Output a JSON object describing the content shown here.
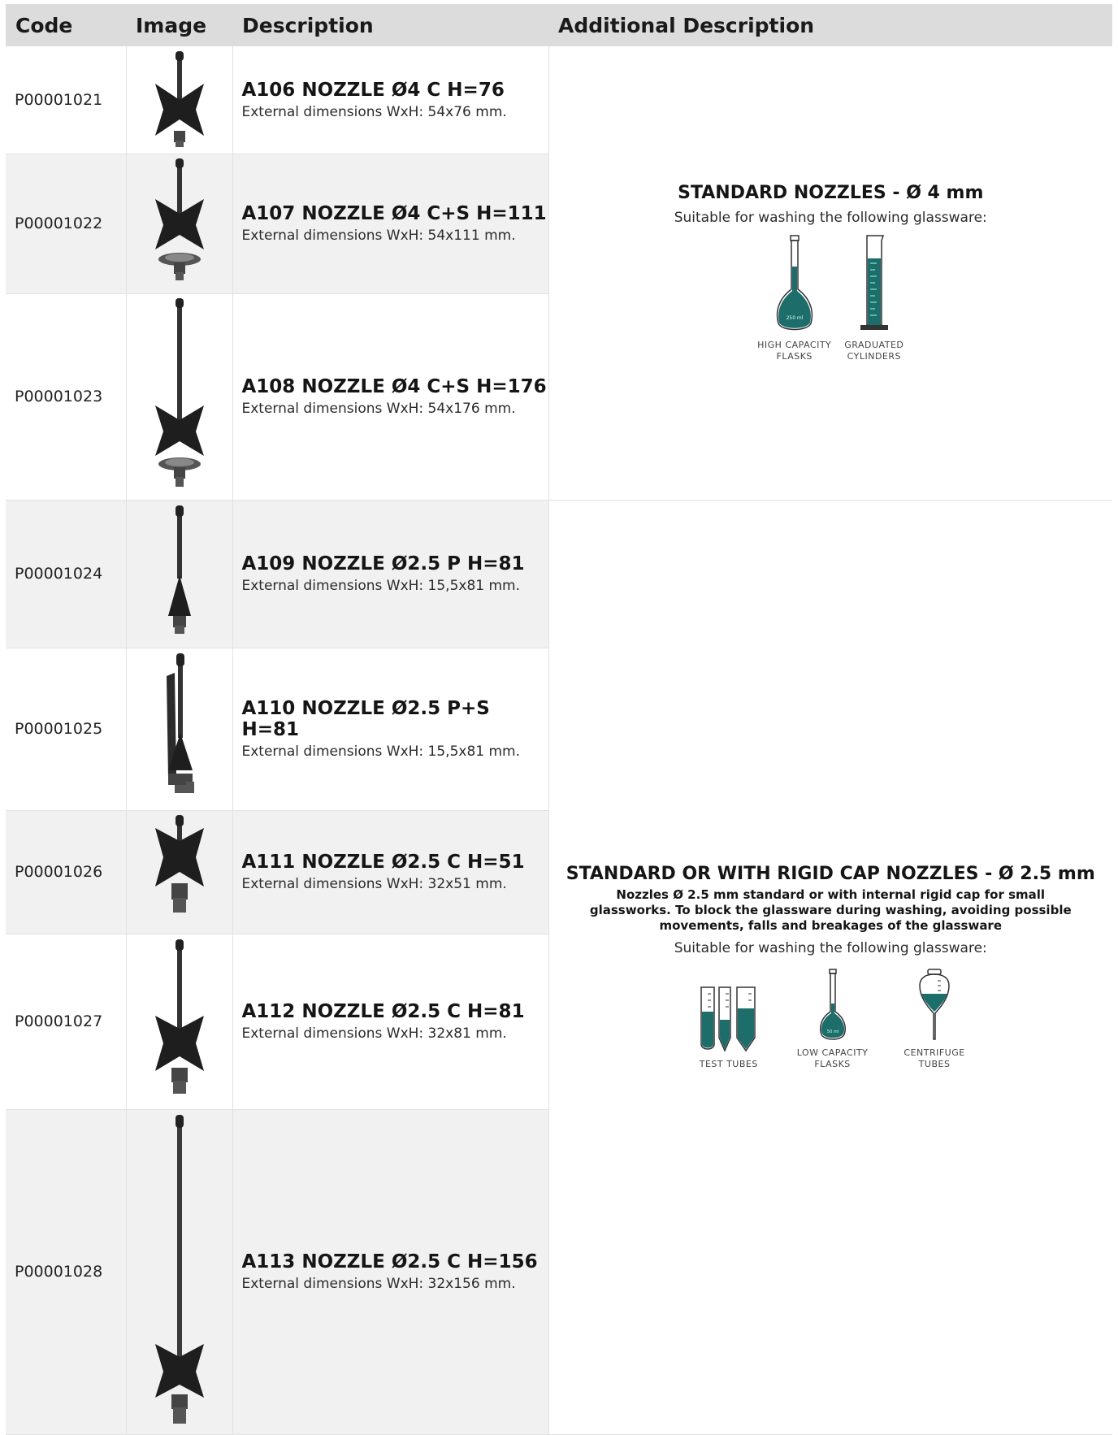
{
  "header": {
    "code": "Code",
    "image": "Image",
    "description": "Description",
    "additional": "Additional Description"
  },
  "colors": {
    "header_bg": "#dcdcdc",
    "row_shade": "#f1f1f1",
    "teal": "#1d6d6a",
    "nozzle": "#2a2a2a"
  },
  "rows": [
    {
      "code": "P00001021",
      "title": "A106 NOZZLE Ø4 C H=76",
      "dimensions": "External dimensions WxH: 54x76 mm.",
      "icon": "cross-nozzle-short-icon"
    },
    {
      "code": "P00001022",
      "title": "A107 NOZZLE Ø4 C+S H=111",
      "dimensions": "External dimensions WxH: 54x111 mm.",
      "icon": "cross-nozzle-spiral-icon"
    },
    {
      "code": "P00001023",
      "title": "A108 NOZZLE Ø4 C+S H=176",
      "dimensions": "External dimensions WxH: 54x176 mm.",
      "icon": "cross-nozzle-spiral-long-icon"
    },
    {
      "code": "P00001024",
      "title": "A109 NOZZLE Ø2.5 P H=81",
      "dimensions": "External dimensions WxH: 15,5x81 mm.",
      "icon": "cone-nozzle-icon"
    },
    {
      "code": "P00001025",
      "title": "A110 NOZZLE Ø2.5 P+S H=81",
      "dimensions": "External dimensions WxH: 15,5x81 mm.",
      "icon": "cone-nozzle-clip-icon"
    },
    {
      "code": "P00001026",
      "title": "A111 NOZZLE Ø2.5 C H=51",
      "dimensions": "External dimensions WxH: 32x51 mm.",
      "icon": "cross-nozzle-mini-icon"
    },
    {
      "code": "P00001027",
      "title": "A112 NOZZLE Ø2.5 C H=81",
      "dimensions": "External dimensions WxH: 32x81 mm.",
      "icon": "cross-nozzle-medium-icon"
    },
    {
      "code": "P00001028",
      "title": "A113 NOZZLE Ø2.5 C H=156",
      "dimensions": "External dimensions WxH: 32x156 mm.",
      "icon": "cross-nozzle-long-icon"
    }
  ],
  "groups": [
    {
      "title": "STANDARD NOZZLES - Ø 4 mm",
      "suitable": "Suitable for washing the following glassware:",
      "glassware": [
        {
          "label_1": "HIGH CAPACITY",
          "label_2": "FLASKS",
          "icon": "volumetric-flask-icon",
          "print": "250 ml"
        },
        {
          "label_1": "GRADUATED",
          "label_2": "CYLINDERS",
          "icon": "graduated-cylinder-icon"
        }
      ]
    },
    {
      "title": "STANDARD OR WITH RIGID CAP NOZZLES - Ø 2.5 mm",
      "note": "Nozzles Ø 2.5 mm standard or with internal rigid cap for small glassworks. To block the glassware during washing, avoiding possible movements, falls and breakages of the glassware",
      "suitable": "Suitable for washing the following glassware:",
      "glassware": [
        {
          "label_1": "TEST TUBES",
          "label_2": "",
          "icon": "test-tubes-icon"
        },
        {
          "label_1": "LOW CAPACITY",
          "label_2": "FLASKS",
          "icon": "small-flask-icon",
          "print": "50 ml"
        },
        {
          "label_1": "CENTRIFUGE",
          "label_2": "TUBES",
          "icon": "centrifuge-tube-icon"
        }
      ]
    }
  ]
}
